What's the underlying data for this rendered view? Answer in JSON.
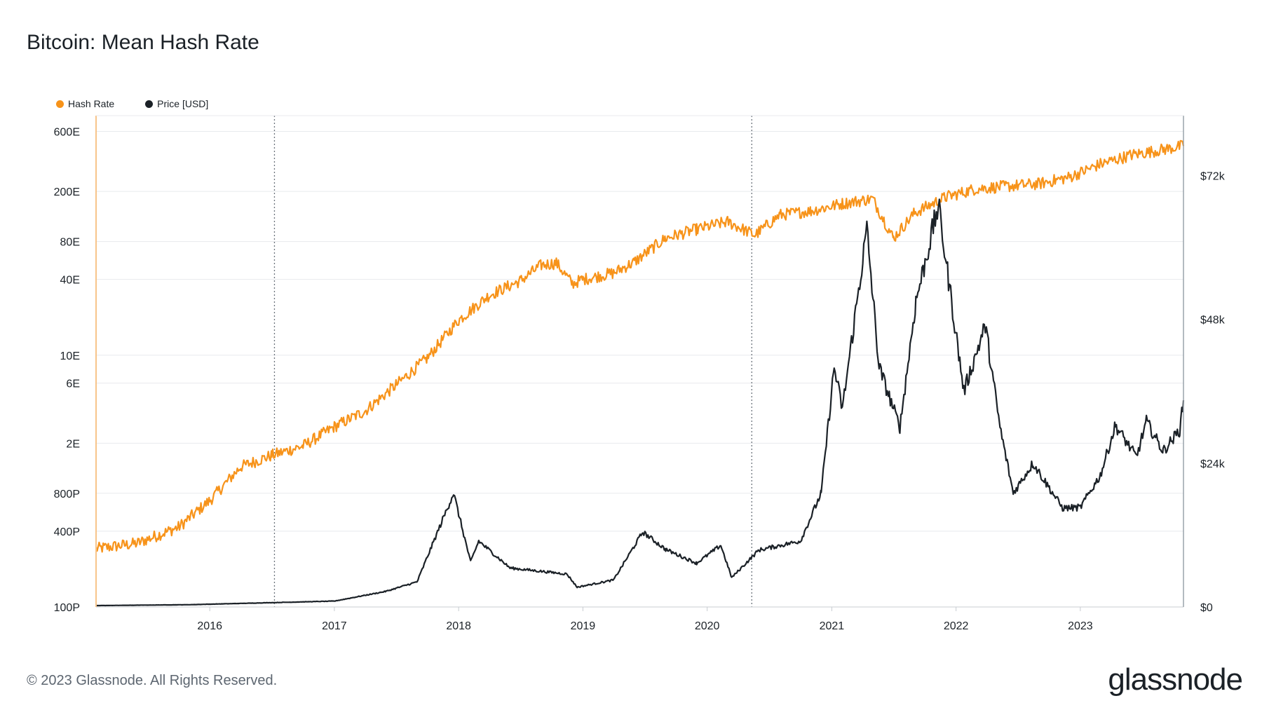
{
  "title": "Bitcoin: Mean Hash Rate",
  "footer": "© 2023 Glassnode. All Rights Reserved.",
  "logo": "glassnode",
  "colors": {
    "hash_rate": "#f7931a",
    "price": "#1b2127",
    "grid": "#e8eaed"
  },
  "chart_data": {
    "type": "line",
    "legend_placement": "top-left",
    "grid": true,
    "x_ticks": [
      "2016",
      "2017",
      "2018",
      "2019",
      "2020",
      "2021",
      "2022",
      "2023"
    ],
    "y_left": {
      "scale": "log",
      "ticks": [
        "600E",
        "200E",
        "80E",
        "40E",
        "10E",
        "6E",
        "2E",
        "800P",
        "400P",
        "100P"
      ],
      "range": [
        "100P",
        "800E"
      ]
    },
    "y_right": {
      "scale": "linear",
      "ticks": [
        "$72k",
        "$48k",
        "$24k",
        "$0"
      ],
      "range": [
        0,
        82000
      ]
    },
    "vertical_markers": [
      "2016-07-09",
      "2020-05-11"
    ],
    "series": [
      {
        "name": "Hash Rate",
        "axis": "left",
        "unit": "H/s",
        "points": [
          [
            "2015-02-01",
            2.9e+17
          ],
          [
            "2015-06-01",
            3.2e+17
          ],
          [
            "2015-10-01",
            4.3e+17
          ],
          [
            "2016-01-01",
            7e+17
          ],
          [
            "2016-04-01",
            1.3e+18
          ],
          [
            "2016-07-01",
            1.6e+18
          ],
          [
            "2016-10-01",
            1.9e+18
          ],
          [
            "2017-01-01",
            2.7e+18
          ],
          [
            "2017-04-01",
            3.6e+18
          ],
          [
            "2017-07-01",
            5.8e+18
          ],
          [
            "2017-10-01",
            9.5e+18
          ],
          [
            "2018-01-01",
            1.9e+19
          ],
          [
            "2018-04-01",
            3e+19
          ],
          [
            "2018-07-01",
            3.9e+19
          ],
          [
            "2018-09-01",
            5.2e+19
          ],
          [
            "2018-10-15",
            5.4e+19
          ],
          [
            "2018-12-01",
            3.7e+19
          ],
          [
            "2019-01-01",
            4e+19
          ],
          [
            "2019-04-01",
            4.5e+19
          ],
          [
            "2019-06-01",
            5.5e+19
          ],
          [
            "2019-09-01",
            8.5e+19
          ],
          [
            "2019-12-01",
            1e+20
          ],
          [
            "2020-03-01",
            1.15e+20
          ],
          [
            "2020-05-20",
            9e+19
          ],
          [
            "2020-08-01",
            1.3e+20
          ],
          [
            "2020-11-01",
            1.4e+20
          ],
          [
            "2021-02-01",
            1.6e+20
          ],
          [
            "2021-05-01",
            1.75e+20
          ],
          [
            "2021-07-01",
            8.5e+19
          ],
          [
            "2021-09-01",
            1.35e+20
          ],
          [
            "2021-12-01",
            1.8e+20
          ],
          [
            "2022-03-01",
            2.1e+20
          ],
          [
            "2022-06-01",
            2.2e+20
          ],
          [
            "2022-09-01",
            2.3e+20
          ],
          [
            "2022-12-01",
            2.6e+20
          ],
          [
            "2023-03-01",
            3.3e+20
          ],
          [
            "2023-06-01",
            3.9e+20
          ],
          [
            "2023-09-01",
            4.3e+20
          ],
          [
            "2023-10-31",
            4.6e+20
          ]
        ]
      },
      {
        "name": "Price [USD]",
        "axis": "right",
        "unit": "USD",
        "points": [
          [
            "2015-02-01",
            230
          ],
          [
            "2015-11-01",
            380
          ],
          [
            "2016-06-15",
            700
          ],
          [
            "2017-01-01",
            980
          ],
          [
            "2017-06-01",
            2600
          ],
          [
            "2017-09-01",
            4200
          ],
          [
            "2017-12-17",
            19000
          ],
          [
            "2018-02-05",
            7500
          ],
          [
            "2018-03-01",
            11000
          ],
          [
            "2018-06-01",
            6500
          ],
          [
            "2018-11-15",
            5500
          ],
          [
            "2018-12-15",
            3300
          ],
          [
            "2019-04-01",
            4500
          ],
          [
            "2019-06-26",
            12500
          ],
          [
            "2019-09-01",
            9600
          ],
          [
            "2019-12-01",
            7300
          ],
          [
            "2020-02-10",
            10300
          ],
          [
            "2020-03-13",
            4900
          ],
          [
            "2020-06-01",
            9500
          ],
          [
            "2020-10-01",
            11000
          ],
          [
            "2020-12-01",
            19000
          ],
          [
            "2021-01-08",
            40000
          ],
          [
            "2021-02-01",
            33000
          ],
          [
            "2021-04-14",
            63000
          ],
          [
            "2021-05-20",
            40000
          ],
          [
            "2021-07-20",
            30000
          ],
          [
            "2021-09-05",
            51000
          ],
          [
            "2021-11-10",
            67000
          ],
          [
            "2022-01-24",
            36000
          ],
          [
            "2022-03-28",
            47000
          ],
          [
            "2022-05-10",
            30000
          ],
          [
            "2022-06-18",
            19000
          ],
          [
            "2022-08-15",
            24000
          ],
          [
            "2022-11-10",
            16500
          ],
          [
            "2023-01-01",
            16600
          ],
          [
            "2023-03-01",
            22000
          ],
          [
            "2023-04-14",
            30300
          ],
          [
            "2023-06-15",
            25000
          ],
          [
            "2023-07-14",
            31000
          ],
          [
            "2023-09-01",
            26000
          ],
          [
            "2023-10-20",
            29500
          ],
          [
            "2023-10-31",
            34500
          ]
        ]
      }
    ]
  }
}
